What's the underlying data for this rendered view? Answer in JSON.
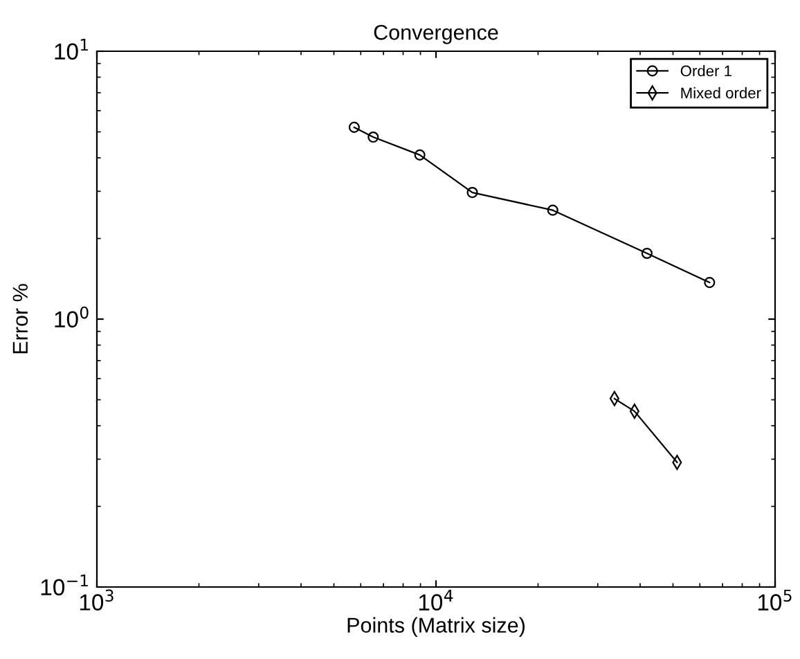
{
  "chart_data": {
    "type": "line",
    "title": "Convergence",
    "xlabel": "Points (Matrix size)",
    "ylabel": "Error %",
    "log": "xy",
    "xlim": [
      1000,
      100000
    ],
    "ylim": [
      0.1,
      10
    ],
    "xticks": [
      {
        "value": 1000,
        "label": "10$^{3}$"
      },
      {
        "value": 10000,
        "label": "10$^{4}$"
      },
      {
        "value": 100000,
        "label": "10$^{5}$"
      }
    ],
    "yticks": [
      {
        "value": 0.1,
        "label": "10$^{−1}$"
      },
      {
        "value": 1,
        "label": "10$^{0}$"
      },
      {
        "value": 10,
        "label": "10$^{1}$"
      }
    ],
    "grid": false,
    "legend": "top right",
    "series": [
      {
        "name": "Order 1",
        "color": "#000000",
        "marker": "circle",
        "x": [
          5740,
          6530,
          8960,
          12800,
          22100,
          41900,
          64100
        ],
        "values": [
          5.2,
          4.78,
          4.1,
          2.97,
          2.55,
          1.76,
          1.37
        ]
      },
      {
        "name": "Mixed order",
        "color": "#000000",
        "marker": "diamond",
        "x": [
          33600,
          38500,
          51400
        ],
        "values": [
          0.505,
          0.453,
          0.292
        ]
      }
    ]
  }
}
